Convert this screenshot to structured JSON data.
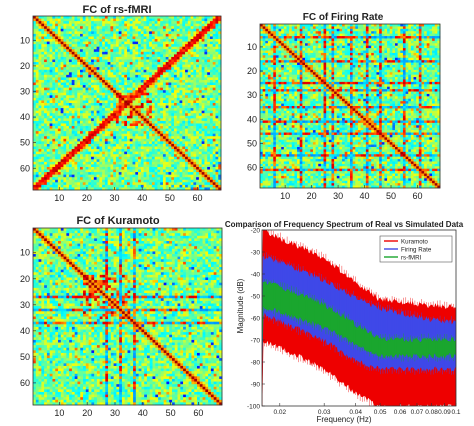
{
  "chart_data": [
    {
      "type": "heatmap",
      "title": "FC of rs-fMRI",
      "n": 68,
      "xticks": [
        10,
        20,
        30,
        40,
        50,
        60
      ],
      "yticks": [
        10,
        20,
        30,
        40,
        50,
        60
      ],
      "pattern": {
        "seed": 11,
        "anti_diagonal": true,
        "clusters": [
          [
            30,
            42
          ]
        ],
        "stripes": []
      }
    },
    {
      "type": "heatmap",
      "title": "FC of Firing Rate",
      "n": 68,
      "xticks": [
        10,
        20,
        30,
        40,
        50,
        60
      ],
      "yticks": [
        10,
        20,
        30,
        40,
        50,
        60
      ],
      "pattern": {
        "seed": 23,
        "anti_diagonal": false,
        "clusters": [],
        "stripes": [
          5,
          15,
          24,
          27,
          34,
          40,
          45,
          54,
          60
        ]
      }
    },
    {
      "type": "heatmap",
      "title": "FC of Kuramoto",
      "n": 68,
      "xticks": [
        10,
        20,
        30,
        40,
        50,
        60
      ],
      "yticks": [
        10,
        20,
        30,
        40,
        50,
        60
      ],
      "pattern": {
        "seed": 37,
        "anti_diagonal": false,
        "clusters": [
          [
            18,
            34
          ]
        ],
        "stripes": [
          26,
          31,
          36
        ]
      }
    },
    {
      "type": "line",
      "title": "Comparison of Frequency Spectrum of Real vs Simulated Data",
      "xlabel": "Frequency (Hz)",
      "ylabel": "Magnitude (dB)",
      "xscale": "log",
      "xlim": [
        0.017,
        0.1
      ],
      "ylim": [
        -100,
        -20
      ],
      "xticks": [
        0.02,
        0.03,
        0.04,
        0.05,
        0.06,
        0.07,
        0.08,
        0.09,
        0.1
      ],
      "xticklabels": [
        "0.02",
        "0.03",
        "0.04",
        "0.05",
        "0.06",
        "0.07",
        "0.08",
        "0.09",
        "0.1"
      ],
      "yticks": [
        -20,
        -30,
        -40,
        -50,
        -60,
        -70,
        -80,
        -90,
        -100
      ],
      "legend": "top-right",
      "series": [
        {
          "name": "Kuramoto",
          "color": "#ee0000",
          "x": [
            0.017,
            0.02,
            0.03,
            0.04,
            0.05,
            0.06,
            0.07,
            0.08,
            0.09,
            0.1
          ],
          "upper": [
            -20,
            -24,
            -33,
            -44,
            -52,
            -53,
            -54,
            -54.5,
            -55,
            -55
          ],
          "lower": [
            -70,
            -73,
            -83,
            -94,
            -100,
            -100,
            -100,
            -100,
            -100,
            -100
          ]
        },
        {
          "name": "Firing Rate",
          "color": "#3f48e8",
          "x": [
            0.017,
            0.02,
            0.03,
            0.04,
            0.05,
            0.06,
            0.07,
            0.08,
            0.09,
            0.1
          ],
          "upper": [
            -32,
            -35,
            -43,
            -51,
            -56,
            -58,
            -60,
            -61,
            -62,
            -62
          ],
          "lower": [
            -58,
            -61,
            -70,
            -79,
            -83,
            -83,
            -83,
            -83,
            -83,
            -83
          ]
        },
        {
          "name": "rs-fMRI",
          "color": "#1aa62e",
          "x": [
            0.017,
            0.02,
            0.03,
            0.04,
            0.05,
            0.06,
            0.07,
            0.08,
            0.09,
            0.1
          ],
          "upper": [
            -43,
            -46,
            -54,
            -63,
            -70,
            -70,
            -70,
            -70,
            -70,
            -70
          ],
          "lower": [
            -55,
            -57,
            -64,
            -72,
            -77,
            -77,
            -77,
            -77,
            -77,
            -77
          ]
        }
      ]
    }
  ]
}
